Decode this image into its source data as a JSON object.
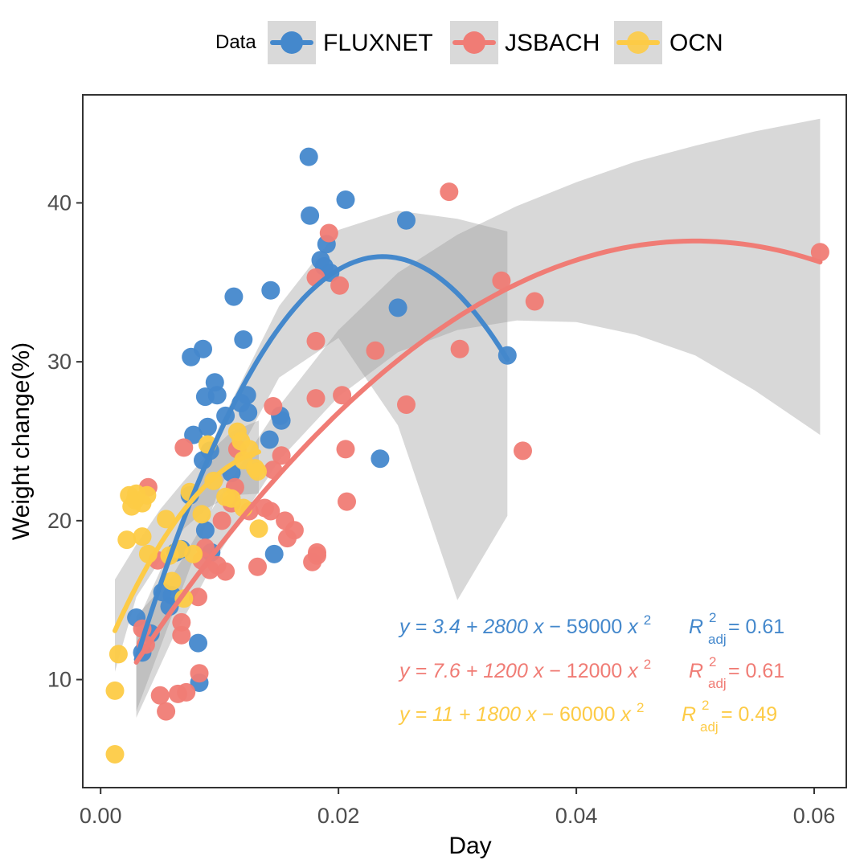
{
  "chart_data": {
    "type": "scatter",
    "xlabel": "Day",
    "ylabel": "Weight change(%)",
    "xlim": [
      -0.0015,
      0.0627
    ],
    "ylim": [
      3.2,
      46.8
    ],
    "x_ticks": [
      0.0,
      0.02,
      0.04,
      0.06
    ],
    "x_tick_labels": [
      "0.00",
      "0.02",
      "0.04",
      "0.06"
    ],
    "y_ticks": [
      10,
      20,
      30,
      40
    ],
    "y_tick_labels": [
      "10",
      "20",
      "30",
      "40"
    ],
    "grid": false,
    "legend": {
      "title": "Data",
      "position": "top"
    },
    "series": [
      {
        "name": "FLUXNET",
        "color": "#4488CC",
        "fit": {
          "intercept": 3.4,
          "b1": 2800,
          "b2": -59000,
          "x_range": [
            0.003,
            0.0342
          ]
        },
        "ci_band": [
          [
            0.003,
            8.0,
            13.5
          ],
          [
            0.006,
            14.0,
            18.5
          ],
          [
            0.01,
            22.0,
            26.0
          ],
          [
            0.015,
            29.0,
            33.5
          ],
          [
            0.02,
            31.5,
            38.3
          ],
          [
            0.025,
            26.0,
            39.5
          ],
          [
            0.03,
            15.0,
            39.0
          ],
          [
            0.0342,
            20.3,
            38.2
          ]
        ],
        "equation": {
          "y_part": "y = 3.4 + 2800",
          "x_part": "x",
          "tail_part": " − 59000",
          "x2_part": "x",
          "exp": "2",
          "r_label": "R",
          "r_exp": "2",
          "r_sub": "adj",
          "r_value": " = 0.61"
        },
        "points": [
          [
            0.0035,
            11.7
          ],
          [
            0.003,
            13.9
          ],
          [
            0.0042,
            12.9
          ],
          [
            0.0052,
            15.5
          ],
          [
            0.0058,
            14.6
          ],
          [
            0.006,
            15.3
          ],
          [
            0.0063,
            18.0
          ],
          [
            0.0068,
            18.2
          ],
          [
            0.0075,
            21.6
          ],
          [
            0.0078,
            25.4
          ],
          [
            0.0082,
            12.3
          ],
          [
            0.0083,
            9.8
          ],
          [
            0.0086,
            23.8
          ],
          [
            0.0088,
            19.4
          ],
          [
            0.0088,
            27.8
          ],
          [
            0.009,
            25.9
          ],
          [
            0.0092,
            24.4
          ],
          [
            0.0093,
            18.0
          ],
          [
            0.0096,
            28.7
          ],
          [
            0.0098,
            27.9
          ],
          [
            0.0105,
            26.6
          ],
          [
            0.011,
            23.0
          ],
          [
            0.0112,
            34.1
          ],
          [
            0.0118,
            27.4
          ],
          [
            0.012,
            31.4
          ],
          [
            0.0123,
            27.9
          ],
          [
            0.0124,
            26.8
          ],
          [
            0.0142,
            25.1
          ],
          [
            0.0143,
            34.5
          ],
          [
            0.0146,
            17.9
          ],
          [
            0.0151,
            26.6
          ],
          [
            0.0152,
            26.3
          ],
          [
            0.0076,
            30.3
          ],
          [
            0.0086,
            30.8
          ],
          [
            0.0175,
            42.9
          ],
          [
            0.0176,
            39.2
          ],
          [
            0.0185,
            36.4
          ],
          [
            0.0188,
            36.0
          ],
          [
            0.019,
            37.4
          ],
          [
            0.0193,
            35.6
          ],
          [
            0.0206,
            40.2
          ],
          [
            0.0235,
            23.9
          ],
          [
            0.025,
            33.4
          ],
          [
            0.0257,
            38.9
          ],
          [
            0.0342,
            30.4
          ]
        ]
      },
      {
        "name": "JSBACH",
        "color": "#F07C75",
        "fit": {
          "intercept": 7.6,
          "b1": 1200,
          "b2": -12000,
          "x_range": [
            0.003,
            0.0605
          ]
        },
        "ci_band": [
          [
            0.003,
            7.6,
            14.0
          ],
          [
            0.006,
            12.5,
            16.5
          ],
          [
            0.01,
            18.0,
            21.5
          ],
          [
            0.015,
            23.8,
            27.2
          ],
          [
            0.02,
            27.8,
            32.0
          ],
          [
            0.025,
            30.6,
            35.6
          ],
          [
            0.03,
            32.0,
            38.0
          ],
          [
            0.035,
            32.6,
            39.8
          ],
          [
            0.04,
            32.5,
            41.3
          ],
          [
            0.045,
            31.7,
            42.6
          ],
          [
            0.05,
            30.4,
            43.6
          ],
          [
            0.055,
            28.2,
            44.5
          ],
          [
            0.0605,
            25.4,
            45.3
          ]
        ],
        "equation": {
          "y_part": "y = 7.6 + 1200",
          "x_part": "x",
          "tail_part": " − 12000",
          "x2_part": "x",
          "exp": "2",
          "r_label": "R",
          "r_exp": "2",
          "r_sub": "adj",
          "r_value": " = 0.61"
        },
        "points": [
          [
            0.0035,
            13.2
          ],
          [
            0.0038,
            12.2
          ],
          [
            0.004,
            22.1
          ],
          [
            0.0048,
            17.5
          ],
          [
            0.005,
            9.0
          ],
          [
            0.0055,
            8.0
          ],
          [
            0.0065,
            9.1
          ],
          [
            0.0068,
            13.6
          ],
          [
            0.0068,
            12.8
          ],
          [
            0.007,
            24.6
          ],
          [
            0.0072,
            9.2
          ],
          [
            0.0083,
            10.4
          ],
          [
            0.0082,
            15.2
          ],
          [
            0.0085,
            17.5
          ],
          [
            0.0088,
            18.3
          ],
          [
            0.0092,
            16.9
          ],
          [
            0.0098,
            17.2
          ],
          [
            0.0102,
            20.0
          ],
          [
            0.0105,
            16.8
          ],
          [
            0.011,
            21.1
          ],
          [
            0.0113,
            22.1
          ],
          [
            0.0115,
            24.5
          ],
          [
            0.0125,
            20.6
          ],
          [
            0.0132,
            17.1
          ],
          [
            0.0138,
            20.8
          ],
          [
            0.0143,
            20.6
          ],
          [
            0.0145,
            27.2
          ],
          [
            0.0145,
            23.2
          ],
          [
            0.0152,
            24.1
          ],
          [
            0.0155,
            20.0
          ],
          [
            0.0157,
            18.9
          ],
          [
            0.0163,
            19.4
          ],
          [
            0.0178,
            17.4
          ],
          [
            0.0182,
            17.8
          ],
          [
            0.0182,
            18.0
          ],
          [
            0.0181,
            27.7
          ],
          [
            0.0181,
            31.3
          ],
          [
            0.0181,
            35.3
          ],
          [
            0.0192,
            38.1
          ],
          [
            0.0201,
            34.8
          ],
          [
            0.0203,
            27.9
          ],
          [
            0.0206,
            24.5
          ],
          [
            0.0207,
            21.2
          ],
          [
            0.0231,
            30.7
          ],
          [
            0.0257,
            27.3
          ],
          [
            0.0293,
            40.7
          ],
          [
            0.0302,
            30.8
          ],
          [
            0.0337,
            35.1
          ],
          [
            0.0355,
            24.4
          ],
          [
            0.0365,
            33.8
          ],
          [
            0.0605,
            36.9
          ]
        ]
      },
      {
        "name": "OCN",
        "color": "#FDCB46",
        "fit": {
          "intercept": 11,
          "b1": 1800,
          "b2": -60000,
          "x_range": [
            0.0012,
            0.0133
          ]
        },
        "ci_band": [
          [
            0.0012,
            10.5,
            16.3
          ],
          [
            0.003,
            15.2,
            18.5
          ],
          [
            0.005,
            17.5,
            20.7
          ],
          [
            0.007,
            19.5,
            22.5
          ],
          [
            0.009,
            20.8,
            24.2
          ],
          [
            0.011,
            21.6,
            25.6
          ],
          [
            0.0133,
            21.7,
            26.3
          ]
        ],
        "equation": {
          "y_part": "y = 11 + 1800",
          "x_part": "x",
          "tail_part": " − 60000",
          "x2_part": "x",
          "exp": "2",
          "r_label": "R",
          "r_exp": "2",
          "r_sub": "adj",
          "r_value": " = 0.49"
        },
        "points": [
          [
            0.0012,
            9.3
          ],
          [
            0.0012,
            5.3
          ],
          [
            0.0015,
            11.6
          ],
          [
            0.0022,
            18.8
          ],
          [
            0.0024,
            21.6
          ],
          [
            0.0026,
            20.9
          ],
          [
            0.0029,
            21.3
          ],
          [
            0.003,
            21.7
          ],
          [
            0.0035,
            21.1
          ],
          [
            0.0035,
            19.0
          ],
          [
            0.0039,
            21.6
          ],
          [
            0.004,
            17.9
          ],
          [
            0.0055,
            20.1
          ],
          [
            0.0058,
            17.8
          ],
          [
            0.006,
            16.2
          ],
          [
            0.0066,
            18.2
          ],
          [
            0.007,
            15.1
          ],
          [
            0.0075,
            21.8
          ],
          [
            0.0078,
            17.9
          ],
          [
            0.0085,
            20.4
          ],
          [
            0.009,
            24.8
          ],
          [
            0.0095,
            22.5
          ],
          [
            0.0105,
            21.5
          ],
          [
            0.011,
            21.4
          ],
          [
            0.0115,
            25.6
          ],
          [
            0.0118,
            25.0
          ],
          [
            0.012,
            23.8
          ],
          [
            0.0125,
            24.5
          ],
          [
            0.013,
            23.3
          ],
          [
            0.0132,
            23.1
          ],
          [
            0.0133,
            19.5
          ],
          [
            0.012,
            20.8
          ]
        ]
      }
    ]
  }
}
